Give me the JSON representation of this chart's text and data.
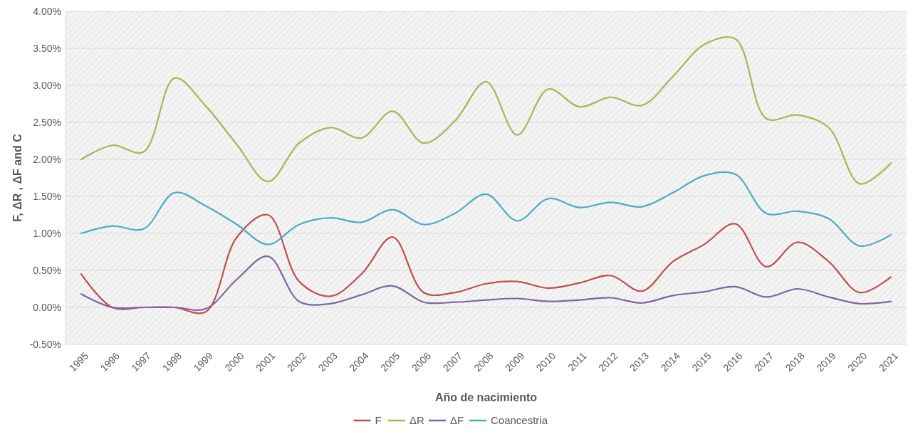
{
  "chart_data": {
    "type": "line",
    "xlabel": "Año de nacimiento",
    "ylabel": "F, ΔR , ΔF and C",
    "categories": [
      "1995",
      "1996",
      "1997",
      "1998",
      "1999",
      "2000",
      "2001",
      "2002",
      "2003",
      "2004",
      "2005",
      "2006",
      "2007",
      "2008",
      "2009",
      "2010",
      "2011",
      "2012",
      "2013",
      "2014",
      "2015",
      "2016",
      "2017",
      "2018",
      "2019",
      "2020",
      "2021"
    ],
    "series": [
      {
        "name": "F",
        "color": "#c0504d",
        "values": [
          0.45,
          0.0,
          0.0,
          0.0,
          -0.06,
          0.95,
          1.25,
          0.35,
          0.15,
          0.45,
          0.95,
          0.2,
          0.2,
          0.32,
          0.35,
          0.26,
          0.33,
          0.43,
          0.22,
          0.62,
          0.85,
          1.13,
          0.55,
          0.88,
          0.62,
          0.2,
          0.41
        ]
      },
      {
        "name": "ΔR",
        "color": "#9bbb59",
        "values": [
          2.0,
          2.19,
          2.1,
          3.1,
          2.72,
          2.2,
          1.7,
          2.22,
          2.43,
          2.29,
          2.65,
          2.22,
          2.52,
          3.05,
          2.33,
          2.95,
          2.71,
          2.84,
          2.73,
          3.12,
          3.55,
          3.63,
          2.55,
          2.6,
          2.43,
          1.67,
          1.95
        ]
      },
      {
        "name": "ΔF",
        "color": "#8064a2",
        "values": [
          0.18,
          0.0,
          0.0,
          0.0,
          -0.02,
          0.38,
          0.69,
          0.08,
          0.05,
          0.17,
          0.29,
          0.07,
          0.07,
          0.1,
          0.12,
          0.08,
          0.1,
          0.13,
          0.06,
          0.16,
          0.21,
          0.28,
          0.14,
          0.25,
          0.14,
          0.05,
          0.08
        ]
      },
      {
        "name": "Coancestria",
        "color": "#4bacc6",
        "values": [
          1.0,
          1.1,
          1.06,
          1.55,
          1.37,
          1.12,
          0.85,
          1.12,
          1.21,
          1.15,
          1.32,
          1.12,
          1.27,
          1.53,
          1.17,
          1.47,
          1.35,
          1.42,
          1.36,
          1.55,
          1.78,
          1.8,
          1.27,
          1.3,
          1.2,
          0.83,
          0.98
        ]
      }
    ],
    "ylim": [
      -0.5,
      4.0
    ],
    "yticks": [
      {
        "value": -0.5,
        "label": "-0.50%"
      },
      {
        "value": 0,
        "label": "0.00%"
      },
      {
        "value": 0.5,
        "label": "0.50%"
      },
      {
        "value": 1.0,
        "label": "1.00%"
      },
      {
        "value": 1.5,
        "label": "1.50%"
      },
      {
        "value": 2.0,
        "label": "2.00%"
      },
      {
        "value": 2.5,
        "label": "2.50%"
      },
      {
        "value": 3.0,
        "label": "3.00%"
      },
      {
        "value": 3.5,
        "label": "3.50%"
      },
      {
        "value": 4.0,
        "label": "4.00%"
      }
    ],
    "grid": "y",
    "legend": "bottom",
    "marker": "none",
    "line_style": "solid"
  }
}
